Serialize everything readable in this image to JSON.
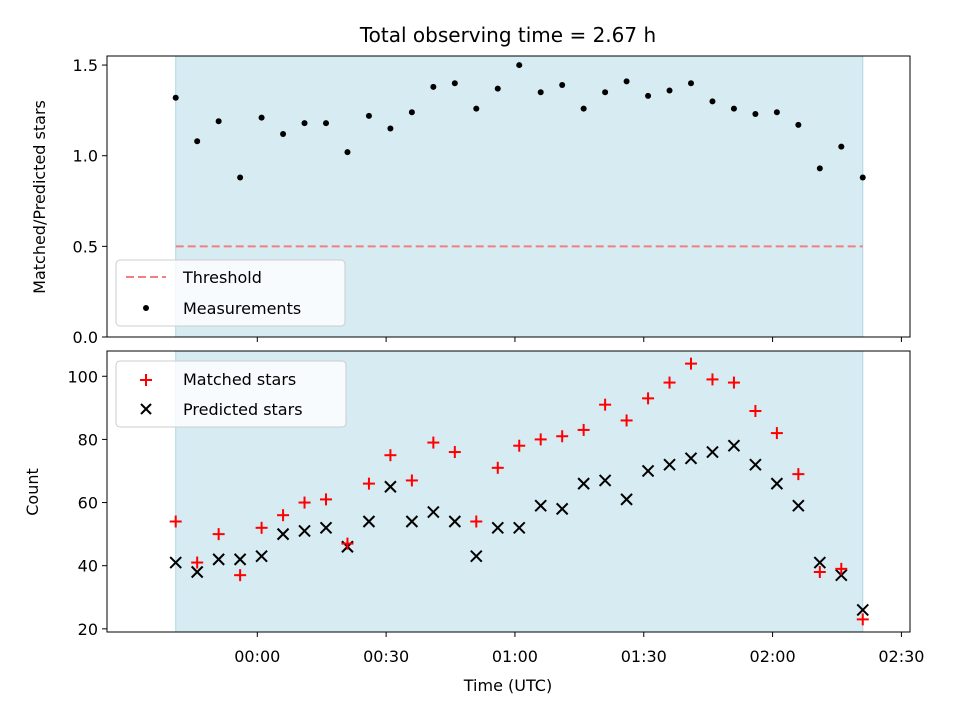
{
  "chart_data": [
    {
      "type": "scatter",
      "title": "Total observing time = 2.67 h",
      "xlabel": "",
      "ylabel": "Matched/Predicted stars",
      "ylim": [
        0,
        1.55
      ],
      "yticks": [
        "0.0",
        "0.5",
        "1.0",
        "1.5"
      ],
      "xlim": [
        "23:25",
        "02:32"
      ],
      "shaded_span": [
        "23:41",
        "02:21"
      ],
      "threshold": 0.5,
      "legend": {
        "placement": "lower-left",
        "entries": [
          "Threshold",
          "Measurements"
        ]
      },
      "colors": {
        "shade": "#add8e6",
        "threshold": "#f08080",
        "measurements": "#000000"
      },
      "x": [
        "23:41",
        "23:46",
        "23:51",
        "23:56",
        "00:01",
        "00:06",
        "00:11",
        "00:16",
        "00:21",
        "00:26",
        "00:31",
        "00:36",
        "00:41",
        "00:46",
        "00:51",
        "00:56",
        "01:01",
        "01:06",
        "01:11",
        "01:16",
        "01:21",
        "01:26",
        "01:31",
        "01:36",
        "01:41",
        "01:46",
        "01:51",
        "01:56",
        "02:01",
        "02:06",
        "02:11",
        "02:16",
        "02:21"
      ],
      "series": [
        {
          "name": "Measurements",
          "values": [
            1.32,
            1.08,
            1.19,
            0.88,
            1.21,
            1.12,
            1.18,
            1.18,
            1.02,
            1.22,
            1.15,
            1.24,
            1.38,
            1.4,
            1.26,
            1.37,
            1.5,
            1.35,
            1.39,
            1.26,
            1.35,
            1.41,
            1.33,
            1.36,
            1.4,
            1.3,
            1.26,
            1.23,
            1.24,
            1.17,
            0.93,
            1.05,
            0.88
          ]
        }
      ]
    },
    {
      "type": "scatter",
      "xlabel": "Time (UTC)",
      "ylabel": "Count",
      "ylim": [
        19,
        108
      ],
      "yticks": [
        "20",
        "40",
        "60",
        "80",
        "100"
      ],
      "xticks": [
        "00:00",
        "00:30",
        "01:00",
        "01:30",
        "02:00",
        "02:30"
      ],
      "legend": {
        "placement": "top-left",
        "entries": [
          "Matched stars",
          "Predicted stars"
        ]
      },
      "colors": {
        "matched": "#ff0000",
        "predicted": "#000000"
      },
      "series": [
        {
          "name": "Matched stars",
          "values": [
            54,
            41,
            50,
            37,
            52,
            56,
            60,
            61,
            47,
            66,
            75,
            67,
            79,
            76,
            54,
            71,
            78,
            80,
            81,
            83,
            91,
            86,
            93,
            98,
            104,
            99,
            98,
            89,
            82,
            69,
            38,
            39,
            23
          ]
        },
        {
          "name": "Predicted stars",
          "values": [
            41,
            38,
            42,
            42,
            43,
            50,
            51,
            52,
            46,
            54,
            65,
            54,
            57,
            54,
            43,
            52,
            52,
            59,
            58,
            66,
            67,
            61,
            70,
            72,
            74,
            76,
            78,
            72,
            66,
            59,
            41,
            37,
            26
          ]
        }
      ]
    }
  ]
}
